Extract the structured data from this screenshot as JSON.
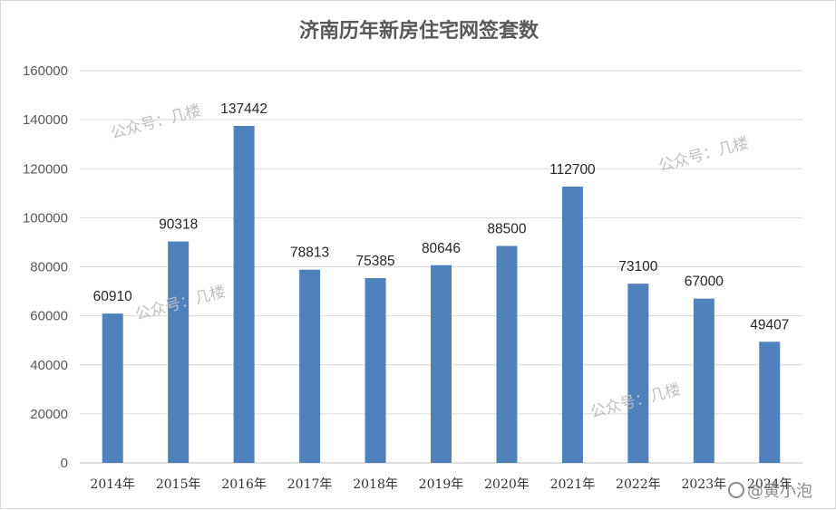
{
  "chart_data": {
    "type": "bar",
    "title": "济南历年新房住宅网签套数",
    "categories": [
      "2014年",
      "2015年",
      "2016年",
      "2017年",
      "2018年",
      "2019年",
      "2020年",
      "2021年",
      "2022年",
      "2023年",
      "2024年"
    ],
    "values": [
      60910,
      90318,
      137442,
      78813,
      75385,
      80646,
      88500,
      112700,
      73100,
      67000,
      49407
    ],
    "ylim": [
      0,
      160000
    ],
    "yticks": [
      0,
      20000,
      40000,
      60000,
      80000,
      100000,
      120000,
      140000,
      160000
    ],
    "xlabel": "",
    "ylabel": "",
    "grid": true,
    "bar_color": "#4f81bd"
  },
  "watermarks": {
    "public_account": "公众号：几楼",
    "weibo": "@黄小泡"
  }
}
